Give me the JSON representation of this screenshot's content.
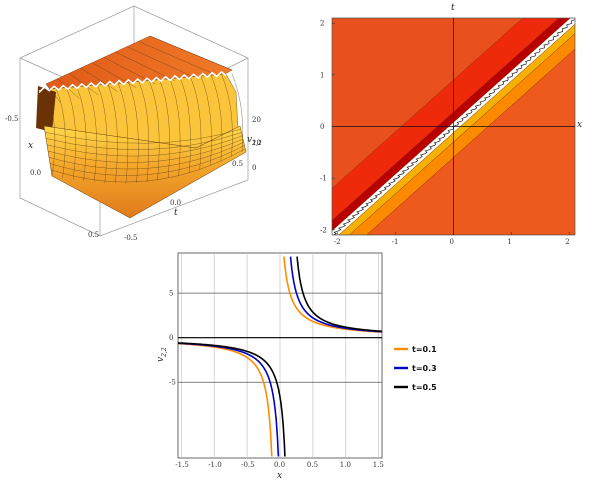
{
  "chart_data": [
    {
      "type": "surface3d",
      "axes": {
        "x": {
          "label": "x",
          "ticks": [
            "-0.5",
            "0.0",
            "0.5"
          ]
        },
        "t": {
          "label": "t",
          "ticks": [
            "-0.5",
            "0.0",
            "0.5"
          ]
        },
        "v": {
          "label": "v",
          "sub": "2,2",
          "ticks": [
            "20",
            "10",
            "0"
          ]
        }
      },
      "colors": {
        "surface": "#f0a020",
        "mesh": "#5a3a10",
        "dark": "#6b3206"
      }
    },
    {
      "type": "contour",
      "axes": {
        "x": {
          "label": "x",
          "ticks": [
            "-2",
            "-1",
            "0",
            "1",
            "2"
          ],
          "range": [
            -2.1,
            2.1
          ]
        },
        "t": {
          "label": "t",
          "ticks": [
            "-2",
            "-1",
            "0",
            "1",
            "2"
          ],
          "range": [
            -2.1,
            2.1
          ]
        }
      },
      "bands": [
        {
          "color": "#e8501e"
        },
        {
          "color": "#ee2a0a"
        },
        {
          "color": "#b80000"
        },
        {
          "color": "#ffffff"
        },
        {
          "color": "#f5b000"
        },
        {
          "color": "#fb8a00"
        },
        {
          "color": "#ee5a1e"
        }
      ]
    },
    {
      "type": "line",
      "xlabel": "x",
      "ylabel": "v",
      "ylabel_sub": "2,2",
      "xlim": [
        -1.55,
        1.55
      ],
      "ylim": [
        -13.5,
        9.5
      ],
      "xticks": [
        "-1.5",
        "-1.0",
        "-0.5",
        "0.0",
        "0.5",
        "1.0",
        "1.5"
      ],
      "yticks": [
        "5",
        "0",
        "-5"
      ],
      "grid": true,
      "legend_position": "right",
      "series": [
        {
          "name": "t=0.1",
          "color": "#ff8c00",
          "pole": -0.05,
          "k": 1.0
        },
        {
          "name": "t=0.3",
          "color": "#0000c8",
          "pole": 0.05,
          "k": 1.0
        },
        {
          "name": "t=0.5",
          "color": "#000000",
          "pole": 0.15,
          "k": 1.0
        }
      ]
    }
  ]
}
